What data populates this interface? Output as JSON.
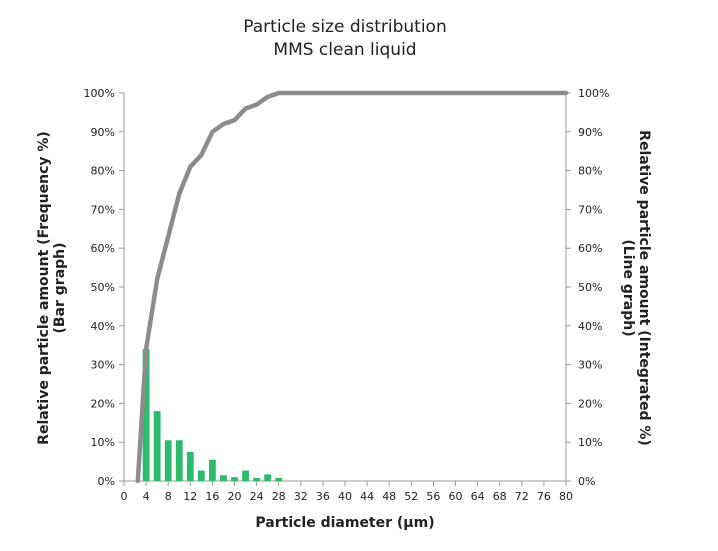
{
  "chart_data": {
    "type": "bar",
    "title": "Particle size distribution",
    "subtitle": "MMS clean liquid",
    "xlabel": "Particle diameter (µm)",
    "ylabel_left_line1": "Relative particle amount (Frequency %)",
    "ylabel_left_line2": "(Bar graph)",
    "ylabel_right_line1": "Relative particle amount (Integrated %)",
    "ylabel_right_line2": "(Line graph)",
    "xlim": [
      0,
      80
    ],
    "ylim": [
      0,
      100
    ],
    "x_ticks": [
      "0",
      "4",
      "8",
      "12",
      "16",
      "20",
      "24",
      "28",
      "32",
      "36",
      "40",
      "44",
      "48",
      "52",
      "56",
      "60",
      "64",
      "68",
      "72",
      "76",
      "80"
    ],
    "y_ticks": [
      "0%",
      "10%",
      "20%",
      "30%",
      "40%",
      "50%",
      "60%",
      "70%",
      "80%",
      "90%",
      "100%"
    ],
    "bar_color": "#2dbb6b",
    "line_color": "#8c8c8c",
    "series": [
      {
        "type": "bar",
        "x": [
          4,
          6,
          8,
          10,
          12,
          14,
          16,
          18,
          20,
          22,
          24,
          26,
          28
        ],
        "values": [
          34,
          18,
          10.5,
          10.5,
          7.5,
          2.7,
          5.5,
          1.5,
          1,
          2.7,
          0.8,
          1.7,
          0.8
        ]
      },
      {
        "type": "line",
        "x": [
          2.5,
          4,
          6,
          8,
          10,
          12,
          14,
          16,
          18,
          20,
          22,
          24,
          26,
          28,
          30,
          80
        ],
        "values": [
          0,
          34,
          52,
          63,
          74,
          81,
          84,
          90,
          92,
          93,
          96,
          97,
          99,
          100,
          100,
          100
        ]
      }
    ]
  }
}
